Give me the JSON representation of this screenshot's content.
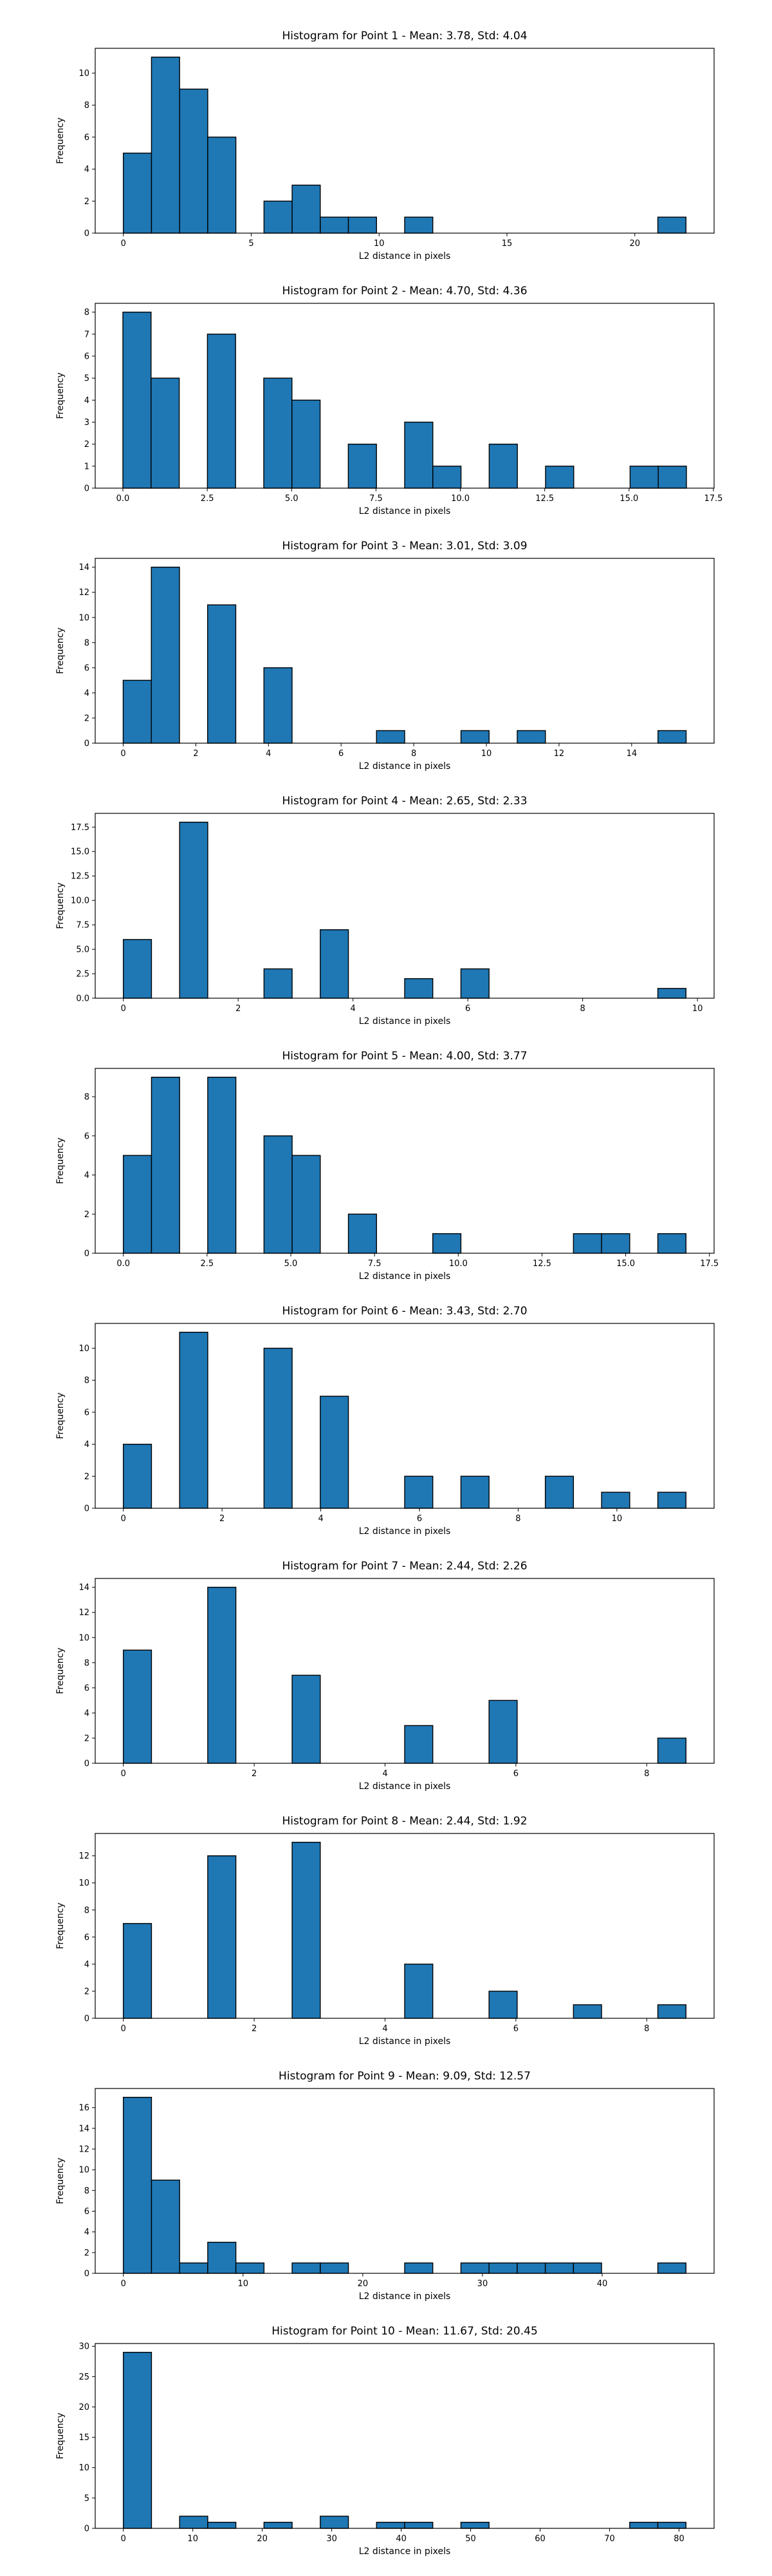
{
  "colors": {
    "bar_fill": "#1f77b4",
    "bar_edge": "#000000",
    "axes": "#000000",
    "background": "#ffffff"
  },
  "chart_data": [
    {
      "type": "bar",
      "title": "Histogram for Point 1 - Mean: 3.78, Std: 4.04",
      "xlabel": "L2 distance in pixels",
      "ylabel": "Frequency",
      "xlim": [
        -1.1,
        23.1
      ],
      "ylim": [
        0,
        11.55
      ],
      "xticks": [
        0,
        5,
        10,
        15,
        20
      ],
      "yticks": [
        0,
        2,
        4,
        6,
        8,
        10
      ],
      "bin_range": [
        0,
        22.0
      ],
      "counts": [
        5,
        11,
        9,
        6,
        0,
        2,
        3,
        1,
        1,
        0,
        1,
        0,
        0,
        0,
        0,
        0,
        0,
        0,
        0,
        1
      ],
      "grid": false,
      "legend": "none"
    },
    {
      "type": "bar",
      "title": "Histogram for Point 2 - Mean: 4.70, Std: 4.36",
      "xlabel": "L2 distance in pixels",
      "ylabel": "Frequency",
      "xlim": [
        -0.82,
        17.52
      ],
      "ylim": [
        0,
        8.4
      ],
      "xticks": [
        0.0,
        2.5,
        5.0,
        7.5,
        10.0,
        12.5,
        15.0,
        17.5
      ],
      "xtick_labels": [
        "0.0",
        "2.5",
        "5.0",
        "7.5",
        "10.0",
        "12.5",
        "15.0",
        "17.5"
      ],
      "yticks": [
        0,
        1,
        2,
        3,
        4,
        5,
        6,
        7,
        8
      ],
      "bin_range": [
        0,
        16.7
      ],
      "counts": [
        8,
        5,
        0,
        7,
        0,
        5,
        4,
        0,
        2,
        0,
        3,
        1,
        0,
        2,
        0,
        1,
        0,
        0,
        1,
        1
      ],
      "grid": false,
      "legend": "none"
    },
    {
      "type": "bar",
      "title": "Histogram for Point 3 - Mean: 3.01, Std: 3.09",
      "xlabel": "L2 distance in pixels",
      "ylabel": "Frequency",
      "xlim": [
        -0.77,
        16.27
      ],
      "ylim": [
        0,
        14.7
      ],
      "xticks": [
        0,
        2,
        4,
        6,
        8,
        10,
        12,
        14
      ],
      "yticks": [
        0,
        2,
        4,
        6,
        8,
        10,
        12,
        14
      ],
      "bin_range": [
        0,
        15.5
      ],
      "counts": [
        5,
        14,
        0,
        11,
        0,
        6,
        0,
        0,
        0,
        1,
        0,
        0,
        1,
        0,
        1,
        0,
        0,
        0,
        0,
        1
      ],
      "grid": false,
      "legend": "none"
    },
    {
      "type": "bar",
      "title": "Histogram for Point 4 - Mean: 2.65, Std: 2.33",
      "xlabel": "L2 distance in pixels",
      "ylabel": "Frequency",
      "xlim": [
        -0.49,
        10.29
      ],
      "ylim": [
        0,
        18.9
      ],
      "xticks": [
        0,
        2,
        4,
        6,
        8,
        10
      ],
      "yticks": [
        0.0,
        2.5,
        5.0,
        7.5,
        10.0,
        12.5,
        15.0,
        17.5
      ],
      "ytick_labels": [
        "0.0",
        "2.5",
        "5.0",
        "7.5",
        "10.0",
        "12.5",
        "15.0",
        "17.5"
      ],
      "bin_range": [
        0,
        9.8
      ],
      "counts": [
        6,
        0,
        18,
        0,
        0,
        3,
        0,
        7,
        0,
        0,
        2,
        0,
        3,
        0,
        0,
        0,
        0,
        0,
        0,
        1
      ],
      "grid": false,
      "legend": "none"
    },
    {
      "type": "bar",
      "title": "Histogram for Point 5 - Mean: 4.00, Std: 3.77",
      "xlabel": "L2 distance in pixels",
      "ylabel": "Frequency",
      "xlim": [
        -0.84,
        17.64
      ],
      "ylim": [
        0,
        9.45
      ],
      "xticks": [
        0.0,
        2.5,
        5.0,
        7.5,
        10.0,
        12.5,
        15.0,
        17.5
      ],
      "xtick_labels": [
        "0.0",
        "2.5",
        "5.0",
        "7.5",
        "10.0",
        "12.5",
        "15.0",
        "17.5"
      ],
      "yticks": [
        0,
        2,
        4,
        6,
        8
      ],
      "bin_range": [
        0,
        16.8
      ],
      "counts": [
        5,
        9,
        0,
        9,
        0,
        6,
        5,
        0,
        2,
        0,
        0,
        1,
        0,
        0,
        0,
        0,
        1,
        1,
        0,
        1
      ],
      "grid": false,
      "legend": "none"
    },
    {
      "type": "bar",
      "title": "Histogram for Point 6 - Mean: 3.43, Std: 2.70",
      "xlabel": "L2 distance in pixels",
      "ylabel": "Frequency",
      "xlim": [
        -0.57,
        11.97
      ],
      "ylim": [
        0,
        11.55
      ],
      "xticks": [
        0,
        2,
        4,
        6,
        8,
        10
      ],
      "yticks": [
        0,
        2,
        4,
        6,
        8,
        10
      ],
      "bin_range": [
        0,
        11.4
      ],
      "counts": [
        4,
        0,
        11,
        0,
        0,
        10,
        0,
        7,
        0,
        0,
        2,
        0,
        2,
        0,
        0,
        2,
        0,
        1,
        0,
        1
      ],
      "grid": false,
      "legend": "none"
    },
    {
      "type": "bar",
      "title": "Histogram for Point 7 - Mean: 2.44, Std: 2.26",
      "xlabel": "L2 distance in pixels",
      "ylabel": "Frequency",
      "xlim": [
        -0.43,
        9.03
      ],
      "ylim": [
        0,
        14.7
      ],
      "xticks": [
        0,
        2,
        4,
        6,
        8
      ],
      "yticks": [
        0,
        2,
        4,
        6,
        8,
        10,
        12,
        14
      ],
      "bin_range": [
        0,
        8.6
      ],
      "counts": [
        9,
        0,
        0,
        14,
        0,
        0,
        7,
        0,
        0,
        0,
        3,
        0,
        0,
        5,
        0,
        0,
        0,
        0,
        0,
        2
      ],
      "grid": false,
      "legend": "none"
    },
    {
      "type": "bar",
      "title": "Histogram for Point 8 - Mean: 2.44, Std: 1.92",
      "xlabel": "L2 distance in pixels",
      "ylabel": "Frequency",
      "xlim": [
        -0.43,
        9.03
      ],
      "ylim": [
        0,
        13.65
      ],
      "xticks": [
        0,
        2,
        4,
        6,
        8
      ],
      "yticks": [
        0,
        2,
        4,
        6,
        8,
        10,
        12
      ],
      "bin_range": [
        0,
        8.6
      ],
      "counts": [
        7,
        0,
        0,
        12,
        0,
        0,
        13,
        0,
        0,
        0,
        4,
        0,
        0,
        2,
        0,
        0,
        1,
        0,
        0,
        1
      ],
      "grid": false,
      "legend": "none"
    },
    {
      "type": "bar",
      "title": "Histogram for Point 9 - Mean: 9.09, Std: 12.57",
      "xlabel": "L2 distance in pixels",
      "ylabel": "Frequency",
      "xlim": [
        -2.35,
        49.35
      ],
      "ylim": [
        0,
        17.85
      ],
      "xticks": [
        0,
        10,
        20,
        30,
        40
      ],
      "yticks": [
        0,
        2,
        4,
        6,
        8,
        10,
        12,
        14,
        16
      ],
      "bin_range": [
        0,
        47.0
      ],
      "counts": [
        17,
        9,
        1,
        3,
        1,
        0,
        1,
        1,
        0,
        0,
        1,
        0,
        1,
        1,
        1,
        1,
        1,
        0,
        0,
        1
      ],
      "grid": false,
      "legend": "none"
    },
    {
      "type": "bar",
      "title": "Histogram for Point 10 - Mean: 11.67, Std: 20.45",
      "xlabel": "L2 distance in pixels",
      "ylabel": "Frequency",
      "xlim": [
        -4.05,
        85.05
      ],
      "ylim": [
        0,
        30.45
      ],
      "xticks": [
        0,
        10,
        20,
        30,
        40,
        50,
        60,
        70,
        80
      ],
      "yticks": [
        0,
        5,
        10,
        15,
        20,
        25,
        30
      ],
      "bin_range": [
        0,
        81.0
      ],
      "counts": [
        29,
        0,
        2,
        1,
        0,
        1,
        0,
        2,
        0,
        1,
        1,
        0,
        1,
        0,
        0,
        0,
        0,
        0,
        1,
        1
      ],
      "grid": false,
      "legend": "none"
    }
  ]
}
